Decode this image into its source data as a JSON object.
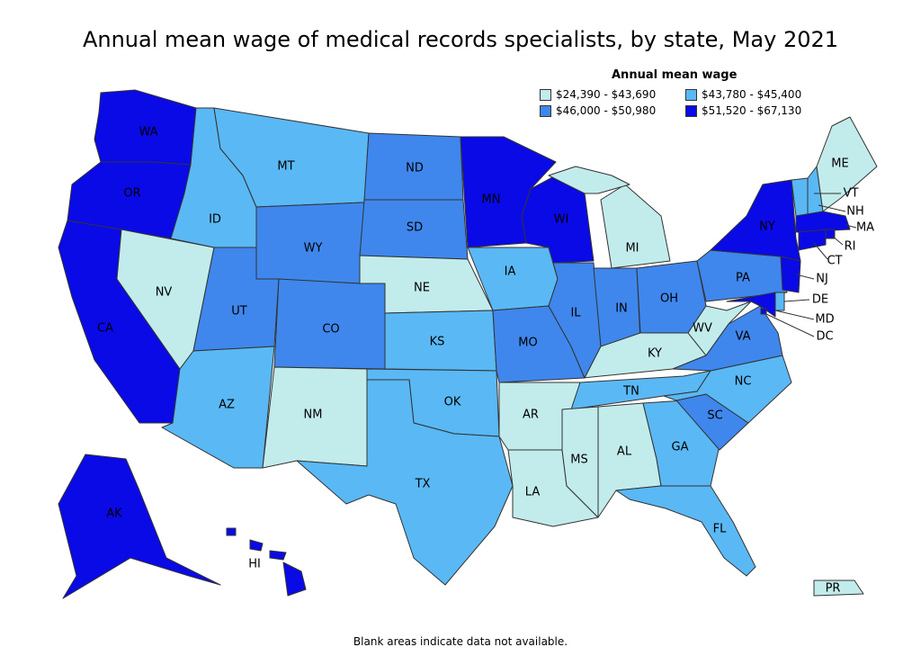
{
  "title": "Annual mean wage of medical records specialists, by state, May 2021",
  "legend": {
    "title": "Annual mean wage",
    "items": [
      {
        "label": "$24,390 - $43,690",
        "color": "#c2ecec"
      },
      {
        "label": "$43,780 - $45,400",
        "color": "#5ab8f5"
      },
      {
        "label": "$46,000 - $50,980",
        "color": "#3f87ec"
      },
      {
        "label": "$51,520 - $67,130",
        "color": "#0a0ae6"
      }
    ]
  },
  "footnote": "Blank areas indicate data not available.",
  "states": [
    {
      "code": "WA",
      "tier": 3
    },
    {
      "code": "OR",
      "tier": 3
    },
    {
      "code": "CA",
      "tier": 3
    },
    {
      "code": "NV",
      "tier": 0
    },
    {
      "code": "ID",
      "tier": 1
    },
    {
      "code": "MT",
      "tier": 1
    },
    {
      "code": "WY",
      "tier": 2
    },
    {
      "code": "UT",
      "tier": 2
    },
    {
      "code": "CO",
      "tier": 2
    },
    {
      "code": "AZ",
      "tier": 1
    },
    {
      "code": "NM",
      "tier": 0
    },
    {
      "code": "ND",
      "tier": 2
    },
    {
      "code": "SD",
      "tier": 2
    },
    {
      "code": "NE",
      "tier": 0
    },
    {
      "code": "KS",
      "tier": 1
    },
    {
      "code": "OK",
      "tier": 1
    },
    {
      "code": "TX",
      "tier": 1
    },
    {
      "code": "MN",
      "tier": 3
    },
    {
      "code": "IA",
      "tier": 1
    },
    {
      "code": "MO",
      "tier": 2
    },
    {
      "code": "AR",
      "tier": 0
    },
    {
      "code": "LA",
      "tier": 0
    },
    {
      "code": "WI",
      "tier": 3
    },
    {
      "code": "IL",
      "tier": 2
    },
    {
      "code": "MI",
      "tier": 0
    },
    {
      "code": "IN",
      "tier": 2
    },
    {
      "code": "OH",
      "tier": 2
    },
    {
      "code": "KY",
      "tier": 0
    },
    {
      "code": "TN",
      "tier": 1
    },
    {
      "code": "MS",
      "tier": 0
    },
    {
      "code": "AL",
      "tier": 0
    },
    {
      "code": "GA",
      "tier": 1
    },
    {
      "code": "FL",
      "tier": 1
    },
    {
      "code": "SC",
      "tier": 2
    },
    {
      "code": "NC",
      "tier": 1
    },
    {
      "code": "VA",
      "tier": 2
    },
    {
      "code": "WV",
      "tier": 0
    },
    {
      "code": "PA",
      "tier": 2
    },
    {
      "code": "NY",
      "tier": 3
    },
    {
      "code": "VT",
      "tier": 1
    },
    {
      "code": "NH",
      "tier": 1
    },
    {
      "code": "ME",
      "tier": 0
    },
    {
      "code": "MA",
      "tier": 3
    },
    {
      "code": "RI",
      "tier": 3
    },
    {
      "code": "CT",
      "tier": 3
    },
    {
      "code": "NJ",
      "tier": 3
    },
    {
      "code": "DE",
      "tier": 1
    },
    {
      "code": "MD",
      "tier": 3
    },
    {
      "code": "DC",
      "tier": 3
    },
    {
      "code": "AK",
      "tier": 3
    },
    {
      "code": "HI",
      "tier": 3
    },
    {
      "code": "PR",
      "tier": 0
    }
  ]
}
